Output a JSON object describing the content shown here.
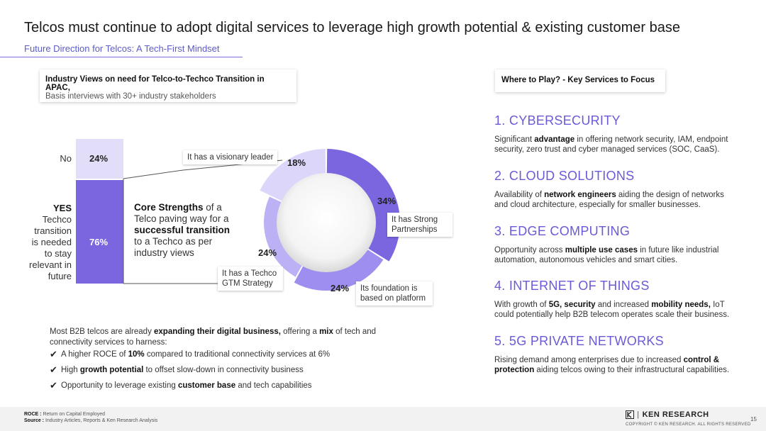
{
  "header": {
    "title": "Telcos must continue to adopt digital services to leverage high growth potential & existing customer base",
    "subtitle": "Future Direction for Telcos: A Tech-First Mindset"
  },
  "left_card": {
    "title": "Industry Views on need for Telco-to-Techco Transition in APAC,",
    "subtitle": "Basis interviews with 30+ industry stakeholders"
  },
  "stacked_bar": {
    "no_label": "No",
    "no_value": "24%",
    "yes_label": "YES",
    "yes_desc": "Techco transition is needed to stay relevant in future",
    "yes_value": "76%",
    "colors": {
      "no": "#e2ddf8",
      "yes": "#7b66e0"
    }
  },
  "core_strengths": {
    "bold1": "Core Strengths",
    "text1": " of a Telco paving way for a ",
    "bold2": "successful transition",
    "text2": " to a Techco as per industry views"
  },
  "chart_data": {
    "type": "pie",
    "title": "Core Strengths of a Telco paving way for a successful transition to a Techco",
    "categories": [
      "It has Strong Partnerships",
      "Its foundation is based on platform",
      "It has a Techco GTM Strategy",
      "It has a visionary leader"
    ],
    "values": [
      34,
      24,
      24,
      18
    ],
    "labels": [
      "34%",
      "24%",
      "24%",
      "18%"
    ],
    "colors": [
      "#7b66e0",
      "#9d8ef0",
      "#bcb1f5",
      "#dcd6fa"
    ]
  },
  "summary": {
    "intro_pre": "Most B2B telcos are already ",
    "intro_bold": "expanding their digital business,",
    "intro_mid": " offering a ",
    "intro_bold2": "mix",
    "intro_post": " of tech and connectivity services to harness:",
    "check_symbol": "✔",
    "items": [
      {
        "pre": "A higher ROCE of ",
        "bold": "10%",
        "post": " compared to traditional connectivity services at 6%"
      },
      {
        "pre": "High ",
        "bold": "growth potential",
        "post": " to offset slow-down in connectivity business"
      },
      {
        "pre": "Opportunity to leverage existing ",
        "bold": "customer base",
        "post": " and tech capabilities"
      }
    ]
  },
  "right_card": {
    "title": "Where to Play? - Key Services to Focus"
  },
  "services": [
    {
      "title": "1. CYBERSECURITY",
      "pre": "Significant ",
      "bold": "advantage",
      "post": " in offering network security, IAM, endpoint security, zero trust and cyber managed services (SOC, CaaS)."
    },
    {
      "title": "2. CLOUD SOLUTIONS",
      "pre": "Availability of ",
      "bold": "network engineers",
      "post": " aiding the design of networks and cloud architecture, especially for smaller businesses."
    },
    {
      "title": "3. EDGE COMPUTING",
      "pre": "Opportunity across ",
      "bold": "multiple use cases",
      "post": " in future like industrial automation, autonomous vehicles and smart cities."
    },
    {
      "title": "4. INTERNET OF THINGS",
      "pre": "With growth of ",
      "bold": "5G, security",
      "mid": " and increased ",
      "bold2": "mobility needs,",
      "post": " IoT could potentially help B2B telecom operates scale their business."
    },
    {
      "title": "5. 5G PRIVATE NETWORKS",
      "pre": "Rising demand among enterprises due to increased ",
      "bold": "control & protection",
      "post": " aiding telcos owing to their infrastructural capabilities."
    }
  ],
  "footer": {
    "roce_label": "ROCE :",
    "roce_text": " Return on Capital Employed",
    "source_label": "Source :",
    "source_text": " Industry Articles, Reports & Ken Research Analysis",
    "logo_text": "KEN RESEARCH",
    "copyright": "COPYRIGHT © KEN RESEARCH. ALL RIGHTS RESERVED",
    "page_number": "15"
  },
  "theme": {
    "accent": "#6a5ad8"
  }
}
